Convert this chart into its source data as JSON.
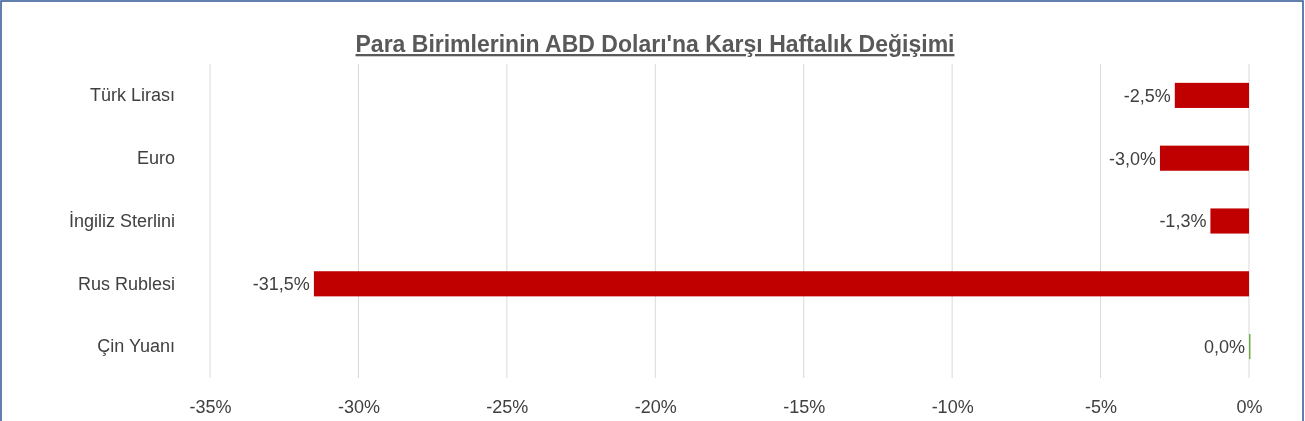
{
  "chart_data": {
    "type": "bar",
    "orientation": "horizontal",
    "title": "Para Birimlerinin ABD Doları'na Karşı Haftalık Değişimi",
    "categories": [
      "Türk Lirası",
      "Euro",
      "İngiliz Sterlini",
      "Rus Rublesi",
      "Çin Yuanı"
    ],
    "values": [
      -2.5,
      -3.0,
      -1.3,
      -31.5,
      0.0
    ],
    "colors": [
      "#c00000",
      "#c00000",
      "#c00000",
      "#c00000",
      "#70ad47"
    ],
    "value_labels": [
      "-2,5%",
      "-3,0%",
      "-1,3%",
      "-31,5%",
      "0,0%"
    ],
    "xlim": [
      -35,
      0
    ],
    "xticks": [
      {
        "value": -35,
        "label": "-35%"
      },
      {
        "value": -30,
        "label": "-30%"
      },
      {
        "value": -25,
        "label": "-25%"
      },
      {
        "value": -20,
        "label": "-20%"
      },
      {
        "value": -15,
        "label": "-15%"
      },
      {
        "value": -10,
        "label": "-10%"
      },
      {
        "value": -5,
        "label": "-5%"
      },
      {
        "value": 0,
        "label": "0%"
      }
    ],
    "grid": "x"
  }
}
